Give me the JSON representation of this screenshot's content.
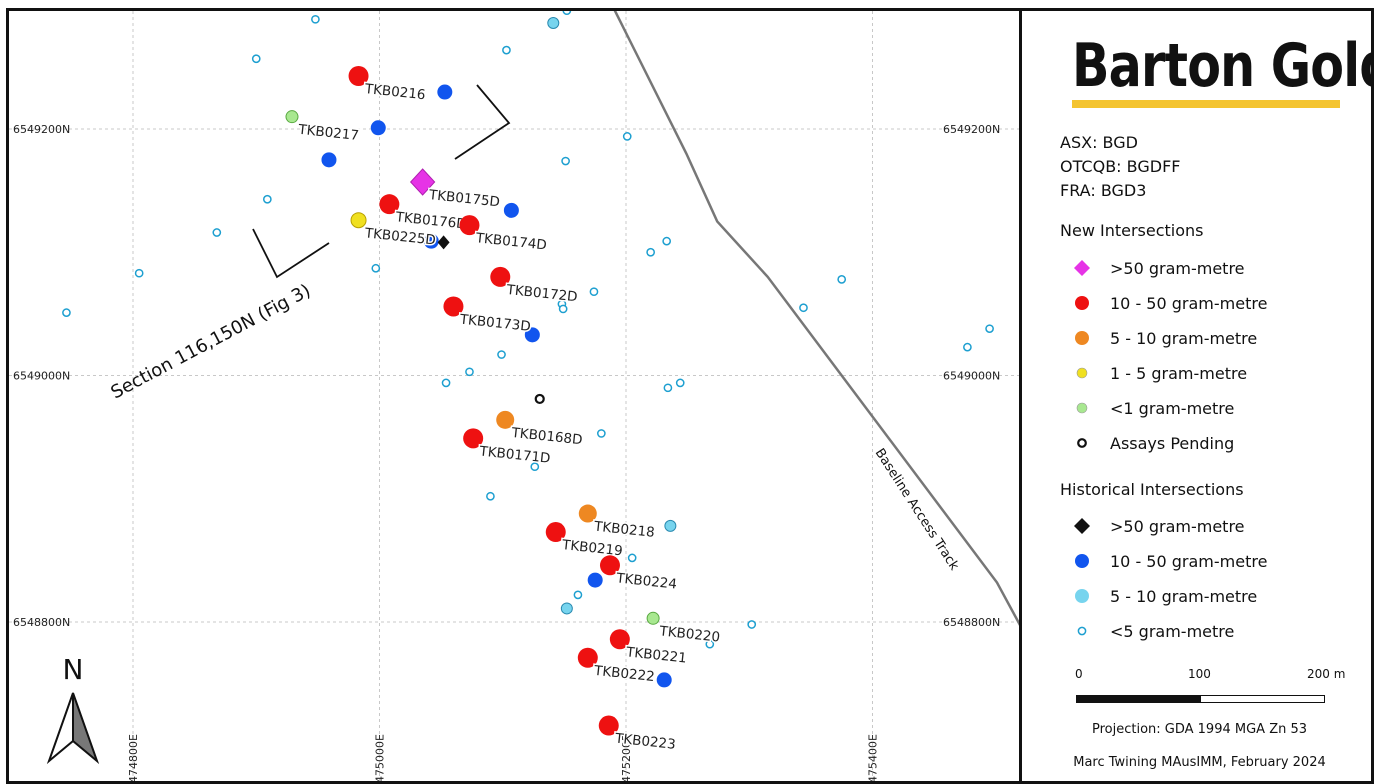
{
  "map": {
    "grid_x": [
      {
        "easting": 474800,
        "label": "474800E"
      },
      {
        "easting": 475000,
        "label": "475000E"
      },
      {
        "easting": 475200,
        "label": "475200E"
      },
      {
        "easting": 475400,
        "label": "475400E"
      }
    ],
    "grid_y": [
      {
        "northing": 6549200,
        "label": "6549200N"
      },
      {
        "northing": 6549000,
        "label": "6549000N"
      },
      {
        "northing": 6548800,
        "label": "6548800N"
      }
    ],
    "section_label": "Section 116,150N (Fig 3)",
    "track_label": "Baseline Access Track",
    "north_label": "N",
    "colors": {
      "gt50_new": "#e633e6",
      "r10_50_new": "#ee1111",
      "r5_10_new": "#ee8822",
      "r1_5_new": "#f0e020",
      "lt1_new": "#a8e890",
      "hist_gt50": "#111111",
      "hist_10_50": "#1155ee",
      "hist_5_10": "#77d4ee",
      "hist_lt5": "#1d9fd0",
      "track": "#777777"
    },
    "holes": [
      {
        "id": "TKB0216",
        "e": 474983,
        "n": 6549243,
        "cls": "r10_50"
      },
      {
        "id": "TKB0217",
        "e": 474929,
        "n": 6549210,
        "cls": "lt1"
      },
      {
        "id": "TKB0175D",
        "e": 475035,
        "n": 6549157,
        "cls": "gt50"
      },
      {
        "id": "TKB0176D",
        "e": 475008,
        "n": 6549139,
        "cls": "r10_50"
      },
      {
        "id": "TKB0225D",
        "e": 474983,
        "n": 6549126,
        "cls": "r1_5"
      },
      {
        "id": "TKB0174D",
        "e": 475073,
        "n": 6549122,
        "cls": "r10_50"
      },
      {
        "id": "TKB0172D",
        "e": 475098,
        "n": 6549080,
        "cls": "r10_50"
      },
      {
        "id": "TKB0173D",
        "e": 475060,
        "n": 6549056,
        "cls": "r10_50"
      },
      {
        "id": "TKB0168D",
        "e": 475102,
        "n": 6548964,
        "cls": "r5_10"
      },
      {
        "id": "TKB0171D",
        "e": 475076,
        "n": 6548949,
        "cls": "r10_50"
      },
      {
        "id": "TKB0218",
        "e": 475169,
        "n": 6548888,
        "cls": "r5_10"
      },
      {
        "id": "TKB0219",
        "e": 475143,
        "n": 6548873,
        "cls": "r10_50"
      },
      {
        "id": "TKB0224",
        "e": 475187,
        "n": 6548846,
        "cls": "r10_50"
      },
      {
        "id": "TKB0220",
        "e": 475222,
        "n": 6548803,
        "cls": "lt1"
      },
      {
        "id": "TKB0221",
        "e": 475195,
        "n": 6548786,
        "cls": "r10_50"
      },
      {
        "id": "TKB0222",
        "e": 475169,
        "n": 6548771,
        "cls": "r10_50"
      },
      {
        "id": "TKB0223",
        "e": 475186,
        "n": 6548716,
        "cls": "r10_50"
      }
    ],
    "pending": [
      {
        "e": 475130,
        "n": 6548981
      }
    ],
    "hist_gt50": [
      {
        "e": 475052,
        "n": 6549108
      }
    ],
    "hist_10_50": [
      {
        "e": 475053,
        "n": 6549230
      },
      {
        "e": 474999,
        "n": 6549201
      },
      {
        "e": 474959,
        "n": 6549175
      },
      {
        "e": 475107,
        "n": 6549134
      },
      {
        "e": 475042,
        "n": 6549109
      },
      {
        "e": 475124,
        "n": 6549033
      },
      {
        "e": 475175,
        "n": 6548834
      },
      {
        "e": 475231,
        "n": 6548753
      }
    ],
    "hist_5_10": [
      {
        "e": 475141,
        "n": 6549286
      },
      {
        "e": 475236,
        "n": 6548878
      },
      {
        "e": 475152,
        "n": 6548811
      }
    ],
    "hist_lt5": [
      {
        "e": 474948,
        "n": 6549289
      },
      {
        "e": 475152,
        "n": 6549296
      },
      {
        "e": 475103,
        "n": 6549264
      },
      {
        "e": 474900,
        "n": 6549257
      },
      {
        "e": 475201,
        "n": 6549194
      },
      {
        "e": 475151,
        "n": 6549174
      },
      {
        "e": 474909,
        "n": 6549143
      },
      {
        "e": 474868,
        "n": 6549116
      },
      {
        "e": 475233,
        "n": 6549109
      },
      {
        "e": 475220,
        "n": 6549100
      },
      {
        "e": 474805,
        "n": 6549083
      },
      {
        "e": 474997,
        "n": 6549087
      },
      {
        "e": 475375,
        "n": 6549078
      },
      {
        "e": 475174,
        "n": 6549068
      },
      {
        "e": 475148,
        "n": 6549058
      },
      {
        "e": 475149,
        "n": 6549054
      },
      {
        "e": 475344,
        "n": 6549055
      },
      {
        "e": 474746,
        "n": 6549051
      },
      {
        "e": 475495,
        "n": 6549038
      },
      {
        "e": 475477,
        "n": 6549023
      },
      {
        "e": 475099,
        "n": 6549017
      },
      {
        "e": 475073,
        "n": 6549003
      },
      {
        "e": 475054,
        "n": 6548994
      },
      {
        "e": 475244,
        "n": 6548994
      },
      {
        "e": 475234,
        "n": 6548990
      },
      {
        "e": 475180,
        "n": 6548953
      },
      {
        "e": 475126,
        "n": 6548926
      },
      {
        "e": 475090,
        "n": 6548902
      },
      {
        "e": 475205,
        "n": 6548852
      },
      {
        "e": 475161,
        "n": 6548822
      },
      {
        "e": 475302,
        "n": 6548798
      },
      {
        "e": 475268,
        "n": 6548782
      }
    ],
    "track": [
      {
        "e": 475179,
        "n": 6549320
      },
      {
        "e": 475249,
        "n": 6549180
      },
      {
        "e": 475274,
        "n": 6549125
      },
      {
        "e": 475315,
        "n": 6549080
      },
      {
        "e": 475501,
        "n": 6548832
      },
      {
        "e": 475540,
        "n": 6548760
      },
      {
        "e": 475580,
        "n": 6548690
      }
    ]
  },
  "legend": {
    "logo": "Barton Gold",
    "tickers": [
      "ASX: BGD",
      "OTCQB: BGDFF",
      "FRA: BGD3"
    ],
    "new_title": "New Intersections",
    "new_items": [
      {
        "label": ">50 gram-metre",
        "symbol": "diamond",
        "color": "#e633e6"
      },
      {
        "label": "10 - 50 gram-metre",
        "symbol": "dot",
        "color": "#ee1111"
      },
      {
        "label": "5 - 10 gram-metre",
        "symbol": "dot",
        "color": "#ee8822"
      },
      {
        "label": "1 - 5 gram-metre",
        "symbol": "dot-small",
        "color": "#f0e020"
      },
      {
        "label": "<1 gram-metre",
        "symbol": "dot-small",
        "color": "#a8e890"
      },
      {
        "label": "Assays Pending",
        "symbol": "ring-black",
        "color": "#111111"
      }
    ],
    "hist_title": "Historical Intersections",
    "hist_items": [
      {
        "label": ">50 gram-metre",
        "symbol": "diamond",
        "color": "#111111"
      },
      {
        "label": "10 - 50 gram-metre",
        "symbol": "dot",
        "color": "#1155ee"
      },
      {
        "label": "5 - 10 gram-metre",
        "symbol": "dot",
        "color": "#77d4ee"
      },
      {
        "label": "<5 gram-metre",
        "symbol": "ring",
        "color": "#1d9fd0"
      }
    ],
    "scale": {
      "labels": [
        "0",
        "100",
        "200 m"
      ],
      "values_m": [
        0,
        100,
        200
      ]
    },
    "projection": "Projection: GDA 1994 MGA Zn 53",
    "credit": "Marc Twining MAusIMM, February 2024"
  }
}
